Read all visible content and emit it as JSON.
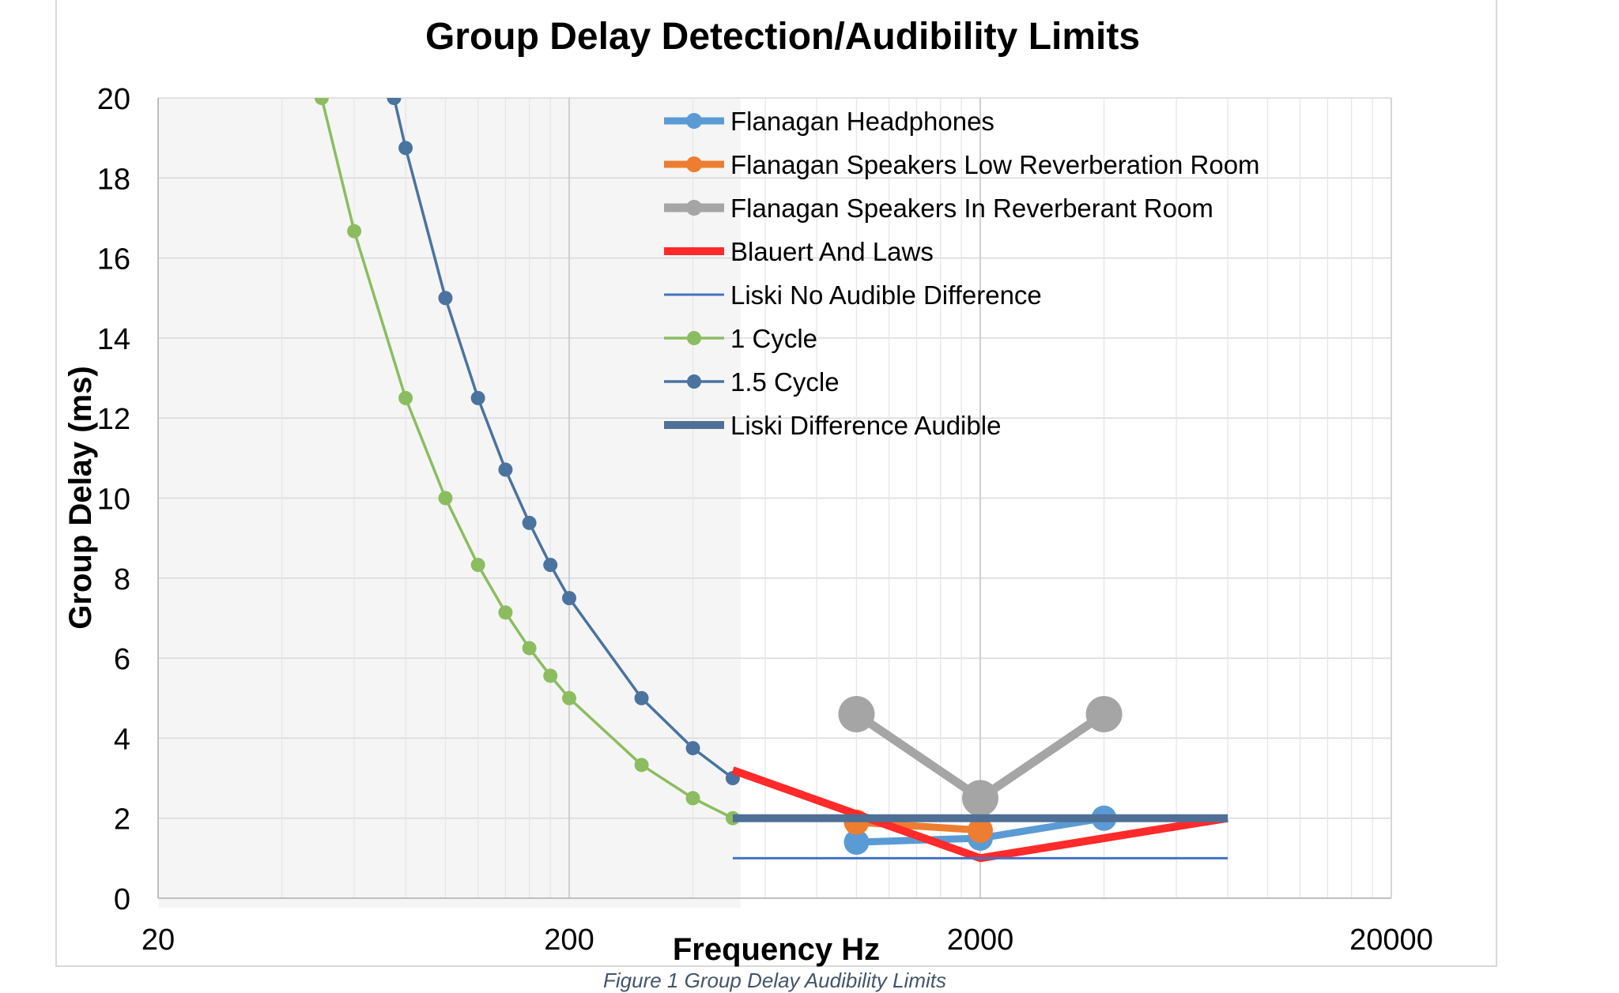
{
  "chart_data": {
    "type": "line",
    "title": "Group Delay Detection/Audibility Limits",
    "xlabel": "Frequency Hz",
    "ylabel": "Group Delay (ms)",
    "xscale": "log",
    "xlim": [
      20,
      20000
    ],
    "ylim": [
      0,
      20
    ],
    "x_ticks": [
      20,
      200,
      2000,
      20000
    ],
    "y_ticks": [
      0,
      2,
      4,
      6,
      8,
      10,
      12,
      14,
      16,
      18,
      20
    ],
    "grid": true,
    "shaded_region_x": [
      20,
      500
    ],
    "legend_position": "top-right",
    "series": [
      {
        "name": "Flanagan Headphones",
        "color": "#5b9bd5",
        "line_width": 9,
        "marker": "large",
        "x": [
          1000,
          2000,
          4000
        ],
        "y": [
          1.4,
          1.5,
          2.0
        ]
      },
      {
        "name": "Flanagan Speakers Low Reverberation Room",
        "color": "#ed7d31",
        "line_width": 9,
        "marker": "large",
        "x": [
          1000,
          2000
        ],
        "y": [
          1.9,
          1.7
        ]
      },
      {
        "name": "Flanagan Speakers In Reverberant Room",
        "color": "#a5a5a5",
        "line_width": 11,
        "marker": "large",
        "x": [
          1000,
          2000,
          4000
        ],
        "y": [
          4.6,
          2.5,
          4.6
        ]
      },
      {
        "name": "Blauert And Laws",
        "color": "#ff2a2a",
        "line_width": 10,
        "marker": "none",
        "x": [
          500,
          2000,
          8000
        ],
        "y": [
          3.2,
          1.0,
          2.0
        ]
      },
      {
        "name": "Liski No Audible Difference",
        "color": "#4472c4",
        "line_width": 3,
        "marker": "none",
        "x": [
          500,
          8000
        ],
        "y": [
          1.0,
          1.0
        ]
      },
      {
        "name": "1 Cycle",
        "color": "#8bbd60",
        "line_width": 3.5,
        "marker": "small",
        "x": [
          50,
          60,
          80,
          100,
          120,
          140,
          160,
          180,
          200,
          300,
          400,
          500
        ],
        "y": [
          20,
          16.67,
          12.5,
          10,
          8.33,
          7.14,
          6.25,
          5.56,
          5,
          3.33,
          2.5,
          2
        ]
      },
      {
        "name": "1.5 Cycle",
        "color": "#4a73a0",
        "line_width": 3.5,
        "marker": "small",
        "x": [
          75,
          80,
          100,
          120,
          140,
          160,
          180,
          200,
          300,
          400,
          500
        ],
        "y": [
          20,
          18.75,
          15,
          12.5,
          10.71,
          9.38,
          8.33,
          7.5,
          5,
          3.75,
          3
        ]
      },
      {
        "name": "Liski Difference Audible",
        "color": "#4e6f96",
        "line_width": 10,
        "marker": "none",
        "x": [
          500,
          8000
        ],
        "y": [
          2.0,
          2.0
        ]
      }
    ]
  },
  "caption": "Figure 1 Group Delay Audibility Limits"
}
